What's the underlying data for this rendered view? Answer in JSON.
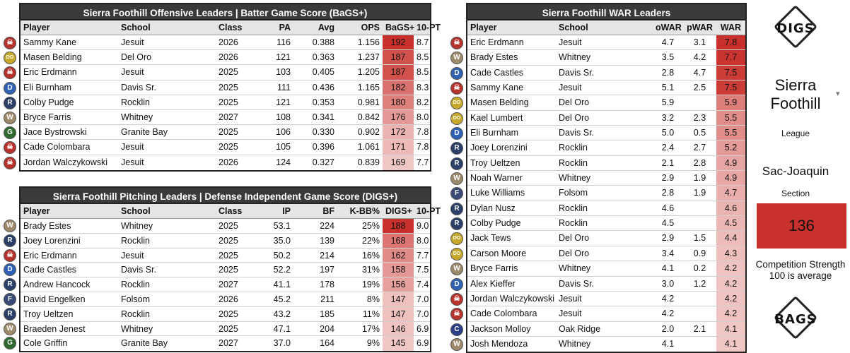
{
  "colors": {
    "score_high": "#c8302b",
    "score_low": "#f0c7c5",
    "header_bg": "#3a3a3a"
  },
  "batting": {
    "title": "Sierra Foothill Offensive Leaders | Batter Game Score (BaGS+)",
    "headers": [
      "Player",
      "School",
      "Class",
      "PA",
      "Avg",
      "OPS",
      "BaGS+",
      "10-PT"
    ],
    "rows": [
      [
        "Sammy Kane",
        "Jesuit",
        "2026",
        "116",
        "0.388",
        "1.156",
        "192",
        "8.7"
      ],
      [
        "Masen Belding",
        "Del Oro",
        "2026",
        "121",
        "0.363",
        "1.237",
        "187",
        "8.5"
      ],
      [
        "Eric Erdmann",
        "Jesuit",
        "2025",
        "103",
        "0.405",
        "1.205",
        "187",
        "8.5"
      ],
      [
        "Eli Burnham",
        "Davis Sr.",
        "2025",
        "111",
        "0.436",
        "1.165",
        "182",
        "8.3"
      ],
      [
        "Colby Pudge",
        "Rocklin",
        "2025",
        "121",
        "0.353",
        "0.981",
        "180",
        "8.2"
      ],
      [
        "Bryce Farris",
        "Whitney",
        "2027",
        "108",
        "0.341",
        "0.842",
        "176",
        "8.0"
      ],
      [
        "Jace Bystrowski",
        "Granite Bay",
        "2025",
        "106",
        "0.330",
        "0.902",
        "172",
        "7.8"
      ],
      [
        "Cade Colombara",
        "Jesuit",
        "2025",
        "105",
        "0.396",
        "1.061",
        "171",
        "7.8"
      ],
      [
        "Jordan Walczykowski",
        "Jesuit",
        "2026",
        "124",
        "0.327",
        "0.839",
        "169",
        "7.7"
      ]
    ]
  },
  "pitching": {
    "title": "Sierra Foothill Pitching Leaders | Defense Independent Game Score (DIGS+)",
    "headers": [
      "Player",
      "School",
      "Class",
      "IP",
      "BF",
      "K-BB%",
      "DIGS+",
      "10-PT"
    ],
    "rows": [
      [
        "Brady Estes",
        "Whitney",
        "2025",
        "53.1",
        "224",
        "25%",
        "188",
        "9.0"
      ],
      [
        "Joey Lorenzini",
        "Rocklin",
        "2025",
        "35.0",
        "139",
        "22%",
        "168",
        "8.0"
      ],
      [
        "Eric Erdmann",
        "Jesuit",
        "2025",
        "50.2",
        "214",
        "16%",
        "162",
        "7.7"
      ],
      [
        "Cade Castles",
        "Davis Sr.",
        "2025",
        "52.2",
        "197",
        "31%",
        "158",
        "7.5"
      ],
      [
        "Andrew Hancock",
        "Rocklin",
        "2027",
        "41.1",
        "178",
        "19%",
        "156",
        "7.4"
      ],
      [
        "David Engelken",
        "Folsom",
        "2026",
        "45.2",
        "211",
        "8%",
        "147",
        "7.0"
      ],
      [
        "Troy Ueltzen",
        "Rocklin",
        "2025",
        "43.2",
        "185",
        "11%",
        "147",
        "7.0"
      ],
      [
        "Braeden Jenest",
        "Whitney",
        "2025",
        "47.1",
        "204",
        "17%",
        "146",
        "6.9"
      ],
      [
        "Cole Griffin",
        "Granite Bay",
        "2027",
        "37.0",
        "164",
        "9%",
        "145",
        "6.9"
      ]
    ]
  },
  "war": {
    "title": "Sierra Foothill WAR Leaders",
    "headers": [
      "Player",
      "School",
      "oWAR",
      "pWAR",
      "WAR"
    ],
    "rows": [
      [
        "Eric Erdmann",
        "Jesuit",
        "4.7",
        "3.1",
        "7.8"
      ],
      [
        "Brady Estes",
        "Whitney",
        "3.5",
        "4.2",
        "7.7"
      ],
      [
        "Cade Castles",
        "Davis Sr.",
        "2.8",
        "4.7",
        "7.5"
      ],
      [
        "Sammy Kane",
        "Jesuit",
        "5.1",
        "2.5",
        "7.5"
      ],
      [
        "Masen Belding",
        "Del Oro",
        "5.9",
        "",
        "5.9"
      ],
      [
        "Kael Lumbert",
        "Del Oro",
        "3.2",
        "2.3",
        "5.5"
      ],
      [
        "Eli Burnham",
        "Davis Sr.",
        "5.0",
        "0.5",
        "5.5"
      ],
      [
        "Joey Lorenzini",
        "Rocklin",
        "2.4",
        "2.7",
        "5.2"
      ],
      [
        "Troy Ueltzen",
        "Rocklin",
        "2.1",
        "2.8",
        "4.9"
      ],
      [
        "Noah Warner",
        "Whitney",
        "2.9",
        "1.9",
        "4.9"
      ],
      [
        "Luke Williams",
        "Folsom",
        "2.8",
        "1.9",
        "4.7"
      ],
      [
        "Dylan Nusz",
        "Rocklin",
        "4.6",
        "",
        "4.6"
      ],
      [
        "Colby Pudge",
        "Rocklin",
        "4.5",
        "",
        "4.5"
      ],
      [
        "Jack Tews",
        "Del Oro",
        "2.9",
        "1.5",
        "4.4"
      ],
      [
        "Carson Moore",
        "Del Oro",
        "3.4",
        "0.9",
        "4.3"
      ],
      [
        "Bryce Farris",
        "Whitney",
        "4.1",
        "0.2",
        "4.2"
      ],
      [
        "Alex Kieffer",
        "Davis Sr.",
        "3.0",
        "1.2",
        "4.2"
      ],
      [
        "Jordan Walczykowski",
        "Jesuit",
        "4.2",
        "",
        "4.2"
      ],
      [
        "Cade Colombara",
        "Jesuit",
        "4.2",
        "",
        "4.2"
      ],
      [
        "Jackson Molloy",
        "Oak Ridge",
        "2.0",
        "2.1",
        "4.1"
      ],
      [
        "Josh Mendoza",
        "Whitney",
        "4.1",
        "",
        "4.1"
      ]
    ]
  },
  "school_logos": {
    "Jesuit": {
      "icon": "pirate-skull-icon",
      "glyph": "☠",
      "bg": "#b8322c"
    },
    "Del Oro": {
      "icon": "del-oro-do-icon",
      "glyph": "DO",
      "bg": "#c8a82a"
    },
    "Davis Sr.": {
      "icon": "davis-d-icon",
      "glyph": "D",
      "bg": "#2f62b3"
    },
    "Rocklin": {
      "icon": "rocklin-r-icon",
      "glyph": "R",
      "bg": "#2a3f6a"
    },
    "Whitney": {
      "icon": "whitney-w-icon",
      "glyph": "W",
      "bg": "#9e8a6a"
    },
    "Granite Bay": {
      "icon": "granite-bay-g-icon",
      "glyph": "G",
      "bg": "#2f6b2f"
    },
    "Folsom": {
      "icon": "folsom-bulldog-icon",
      "glyph": "F",
      "bg": "#3a4a78"
    },
    "Oak Ridge": {
      "icon": "oak-ridge-c-icon",
      "glyph": "C",
      "bg": "#2a3f8a"
    }
  },
  "sidebar": {
    "digs_logo": "DIGS",
    "bags_logo": "BAGS",
    "league_name": "Sierra Foothill",
    "league_label": "League",
    "section_name": "Sac-Joaquin",
    "section_label": "Section",
    "competition_value": "136",
    "competition_label": "Competition Strength 100 is average"
  }
}
